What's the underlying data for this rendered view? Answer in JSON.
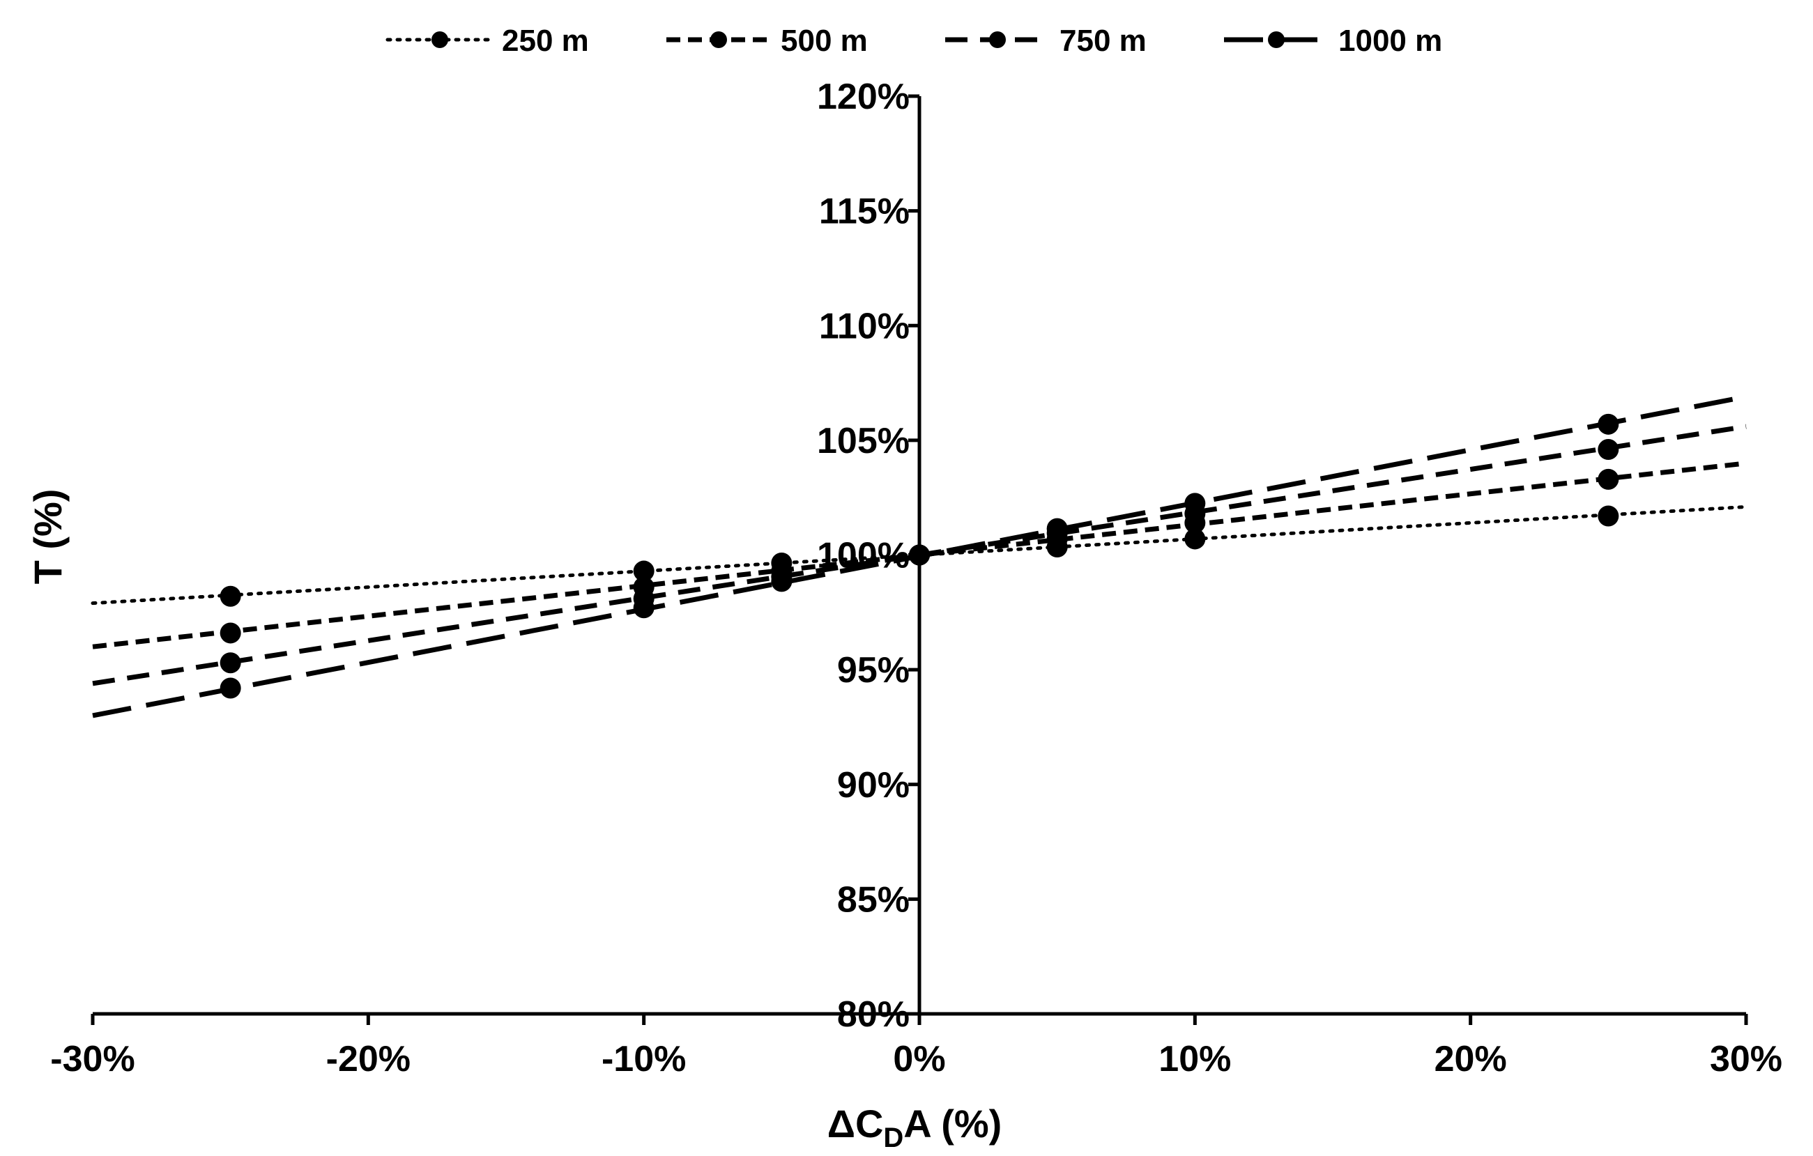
{
  "chart_data": {
    "type": "line",
    "title": "",
    "xlabel": {
      "base": "ΔC",
      "sub": "D",
      "rest": "A (%)"
    },
    "ylabel": "T (%)",
    "xlim": [
      -30,
      30
    ],
    "ylim": [
      80,
      120
    ],
    "x_ticks": [
      -30,
      -20,
      -10,
      0,
      10,
      20,
      30
    ],
    "x_tick_labels": [
      "-30%",
      "-20%",
      "-10%",
      "0%",
      "10%",
      "20%",
      "30%"
    ],
    "y_ticks": [
      80,
      85,
      90,
      95,
      100,
      105,
      110,
      115,
      120
    ],
    "y_tick_labels": [
      "80%",
      "85%",
      "90%",
      "95%",
      "100%",
      "105%",
      "110%",
      "115%",
      "120%"
    ],
    "grid": false,
    "legend_position": "top",
    "series": [
      {
        "name": "250 m",
        "style": "dotted",
        "x": [
          -25,
          -10,
          -5,
          0,
          5,
          10,
          25
        ],
        "y": [
          98.2,
          99.3,
          99.65,
          100,
          100.35,
          100.7,
          101.7
        ],
        "trend": {
          "x": [
            -30,
            30
          ],
          "y": [
            97.9,
            102.1
          ]
        }
      },
      {
        "name": "500 m",
        "style": "dashed-short",
        "x": [
          -25,
          -10,
          -5,
          0,
          5,
          10,
          25
        ],
        "y": [
          96.6,
          98.6,
          99.3,
          100,
          100.7,
          101.4,
          103.3
        ],
        "trend": {
          "x": [
            -30,
            30
          ],
          "y": [
            96.0,
            104.0
          ]
        }
      },
      {
        "name": "750 m",
        "style": "dashed-medium",
        "x": [
          -25,
          -10,
          -5,
          0,
          5,
          10,
          25
        ],
        "y": [
          95.3,
          98.1,
          99.05,
          100,
          100.95,
          101.8,
          104.6
        ],
        "trend": {
          "x": [
            -30,
            30
          ],
          "y": [
            94.4,
            105.6
          ]
        }
      },
      {
        "name": "1000 m",
        "style": "dashed-long",
        "x": [
          -25,
          -10,
          -5,
          0,
          5,
          10,
          25
        ],
        "y": [
          94.2,
          97.7,
          98.85,
          100,
          101.15,
          102.25,
          105.7
        ],
        "trend": {
          "x": [
            -30,
            30
          ],
          "y": [
            93.0,
            106.9
          ]
        }
      }
    ]
  }
}
